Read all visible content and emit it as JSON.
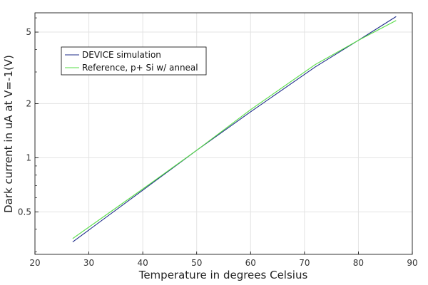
{
  "chart_data": {
    "type": "line",
    "xlabel": "Temperature in degrees Celsius",
    "ylabel": "Dark current in uA at V=-1(V)",
    "xlim": [
      20,
      90
    ],
    "ylim": [
      0.29,
      6.4
    ],
    "yscale": "log",
    "grid": true,
    "legend_position": "top-left",
    "x_ticks": [
      20,
      30,
      40,
      50,
      60,
      70,
      80,
      90
    ],
    "y_major_ticks": [
      0.5,
      1,
      2,
      5
    ],
    "y_major_tick_labels": [
      "0.5",
      "1",
      "2",
      "5"
    ],
    "y_minor_ticks": [
      0.3,
      0.4,
      0.6,
      0.7,
      0.8,
      0.9,
      3,
      4,
      6
    ],
    "series": [
      {
        "name": "DEVICE simulation",
        "color": "#1f2d8a",
        "x": [
          27,
          40,
          50,
          60,
          72,
          80,
          87
        ],
        "y": [
          0.34,
          0.66,
          1.1,
          1.8,
          3.2,
          4.5,
          6.1
        ]
      },
      {
        "name": "Reference, p+ Si w/ anneal",
        "color": "#55dd44",
        "x": [
          27,
          40,
          50,
          60,
          72,
          80,
          87
        ],
        "y": [
          0.355,
          0.67,
          1.1,
          1.85,
          3.3,
          4.5,
          5.8
        ]
      }
    ]
  }
}
